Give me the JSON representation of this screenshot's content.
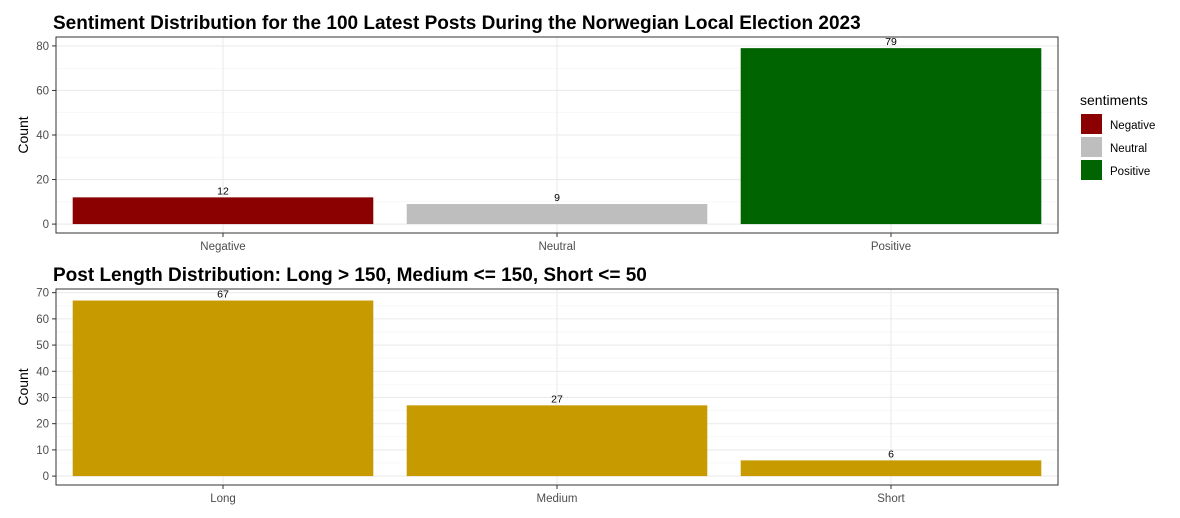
{
  "chart_data": [
    {
      "type": "bar",
      "title": "Sentiment Distribution for the 100 Latest Posts During the Norwegian Local Election 2023",
      "xlabel": "",
      "ylabel": "Count",
      "categories": [
        "Negative",
        "Neutral",
        "Positive"
      ],
      "values": [
        12,
        9,
        79
      ],
      "data_labels": [
        "12",
        "9",
        "79"
      ],
      "colors": [
        "#8b0000",
        "#bebebe",
        "#006400"
      ],
      "yticks": [
        0,
        20,
        40,
        60,
        80
      ],
      "ylim": [
        -4,
        84
      ],
      "grid": true,
      "legend": {
        "title": "sentiments",
        "position": "right",
        "entries": [
          {
            "label": "Negative",
            "color": "#8b0000"
          },
          {
            "label": "Neutral",
            "color": "#bebebe"
          },
          {
            "label": "Positive",
            "color": "#006400"
          }
        ]
      }
    },
    {
      "type": "bar",
      "title": "Post Length Distribution: Long > 150, Medium <= 150, Short <= 50",
      "xlabel": "",
      "ylabel": "Count",
      "categories": [
        "Long",
        "Medium",
        "Short"
      ],
      "values": [
        67,
        27,
        6
      ],
      "data_labels": [
        "67",
        "27",
        "6"
      ],
      "colors": [
        "#c79a00",
        "#c79a00",
        "#c79a00"
      ],
      "yticks": [
        0,
        10,
        20,
        30,
        40,
        50,
        60,
        70
      ],
      "ylim": [
        -3.4,
        71.4
      ],
      "grid": true
    }
  ]
}
